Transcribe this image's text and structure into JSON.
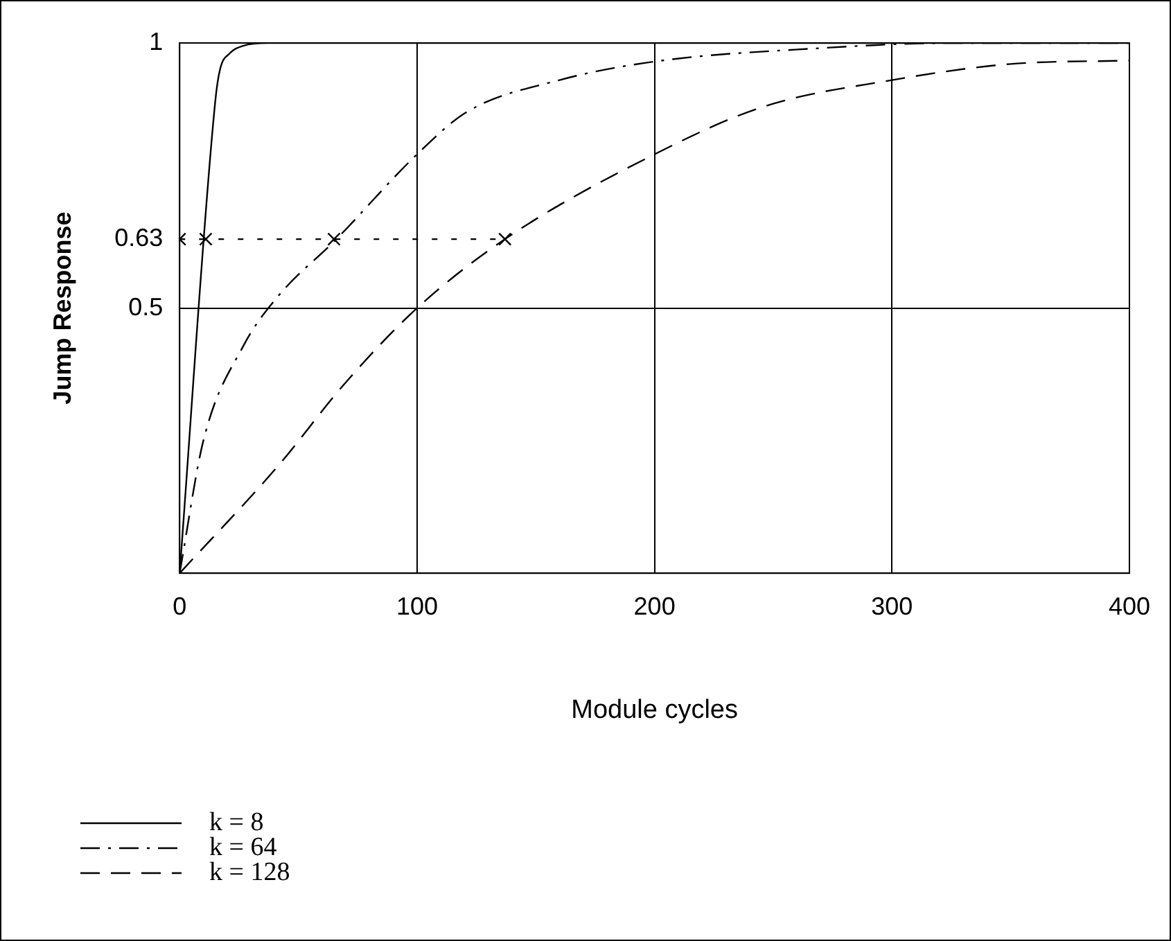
{
  "chart_data": {
    "type": "line",
    "xlabel": "Module cycles",
    "ylabel": "Jump Response",
    "xlim": [
      0,
      400
    ],
    "xticks": [
      0,
      100,
      200,
      300,
      400
    ],
    "ylim": [
      0,
      1
    ],
    "yticks": [
      0.5,
      0.63,
      1
    ],
    "grid": true,
    "legend": "bottom left",
    "marker": "none",
    "series": [
      {
        "name": "k = 8",
        "color": "#000000",
        "line_style": "solid",
        "x": [
          0,
          15,
          17,
          21,
          27,
          37,
          400
        ],
        "values": [
          0,
          0.89,
          0.95,
          0.98,
          0.995,
          1,
          1
        ]
      },
      {
        "name": "k = 64",
        "color": "#000000",
        "line_style": "dashdot",
        "x": [
          0,
          10,
          27,
          41,
          66,
          100,
          121,
          160,
          200,
          269,
          326,
          400
        ],
        "values": [
          0,
          0.25,
          0.43,
          0.52,
          0.63,
          0.79,
          0.87,
          0.93,
          0.965,
          0.99,
          1,
          1
        ]
      },
      {
        "name": "k = 128",
        "color": "#000000",
        "line_style": "dashed",
        "x": [
          0,
          41,
          70,
          100,
          137,
          200,
          246,
          300,
          349,
          400
        ],
        "values": [
          0,
          0.2,
          0.36,
          0.5,
          0.63,
          0.79,
          0.88,
          0.93,
          0.96,
          0.967
        ]
      },
      {
        "color": "#000000",
        "line_style": "dotted",
        "marker": "cross",
        "x": [
          0,
          11,
          65,
          137
        ],
        "values": [
          0.63,
          0.63,
          0.63,
          0.63
        ]
      }
    ]
  }
}
